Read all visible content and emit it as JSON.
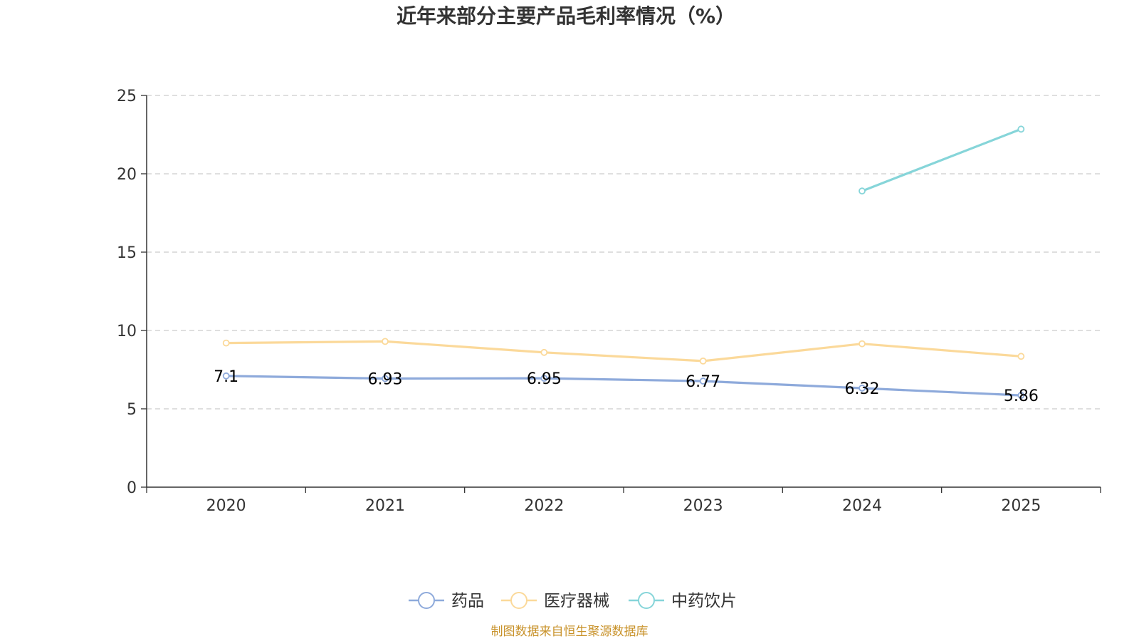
{
  "chart_data": {
    "type": "line",
    "title": "近年来部分主要产品毛利率情况（%）",
    "categories": [
      "2020",
      "2021",
      "2022",
      "2023",
      "2024",
      "2025"
    ],
    "ylim": [
      0,
      25
    ],
    "yticks": [
      0,
      5,
      10,
      15,
      20,
      25
    ],
    "grid": true,
    "legend_position": "bottom",
    "series": [
      {
        "name": "药品",
        "color": "#8eaadb",
        "values": [
          7.1,
          6.93,
          6.95,
          6.77,
          6.32,
          5.86
        ],
        "labels": [
          "7.1",
          "6.93",
          "6.95",
          "6.77",
          "6.32",
          "5.86"
        ],
        "show_labels": true
      },
      {
        "name": "医疗器械",
        "color": "#fbd99a",
        "values": [
          9.2,
          9.3,
          8.6,
          8.05,
          9.15,
          8.35
        ],
        "show_labels": false
      },
      {
        "name": "中药饮片",
        "color": "#86d5d9",
        "values": [
          null,
          null,
          null,
          null,
          18.9,
          22.85
        ],
        "show_labels": false
      }
    ]
  },
  "source": {
    "text": "制图数据来自恒生聚源数据库",
    "color": "#c8922a"
  }
}
